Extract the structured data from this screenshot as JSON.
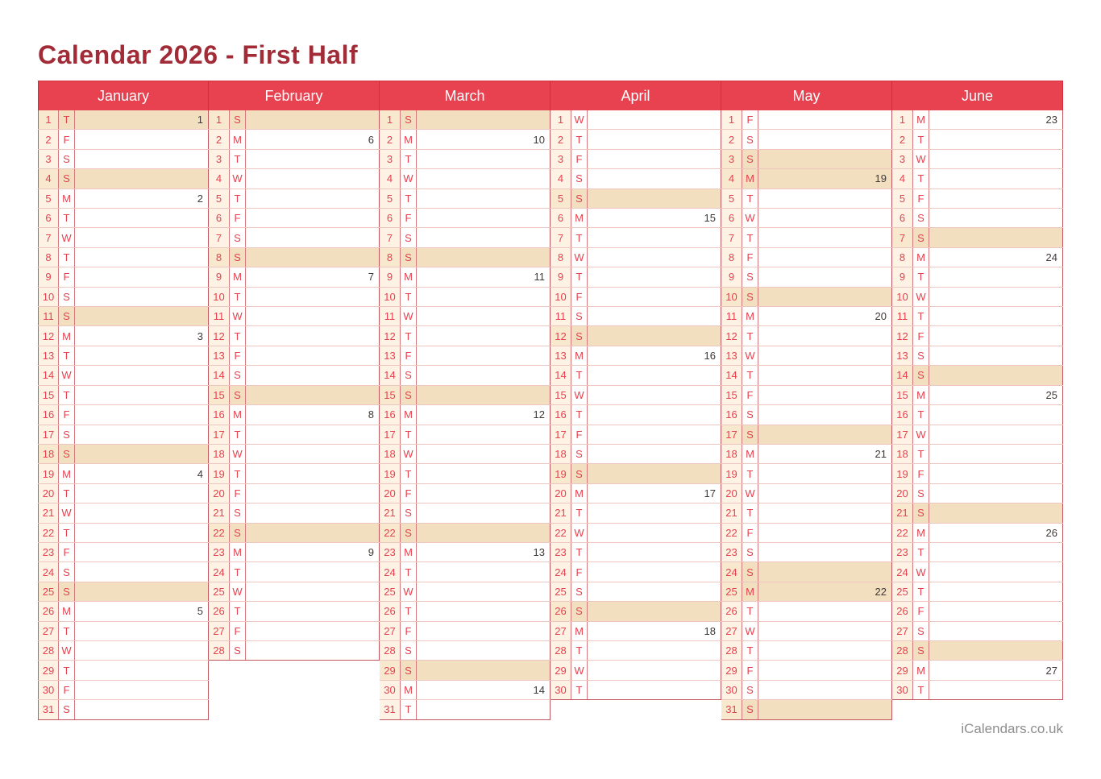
{
  "title": "Calendar 2026 - First Half",
  "footer": "iCalendars.co.uk",
  "colors": {
    "page_bg": "#ffffff",
    "title_text": "#a12b36",
    "header_bg": "#e8414f",
    "header_text": "#ffffff",
    "header_divider": "#d12f3e",
    "day_text": "#e8414f",
    "week_text": "#3f3937",
    "day_cell_bg": "#fdf2e3",
    "day_cell_hl_bg": "#f8e8cd",
    "row_bg": "#ffffff",
    "row_hl_bg": "#f1dfc0",
    "border_strong": "#c2565e",
    "border_mid": "#d4787d",
    "border_light": "#efc5bf",
    "footer_text": "#8e8e8e"
  },
  "calendar": {
    "year": "2026",
    "day_tuple_format": [
      "date",
      "weekday_letter",
      "iso_week_number_or_0",
      "highlighted"
    ],
    "months": [
      {
        "name": "January",
        "days": [
          [
            1,
            "T",
            1,
            true
          ],
          [
            2,
            "F",
            0,
            false
          ],
          [
            3,
            "S",
            0,
            false
          ],
          [
            4,
            "S",
            0,
            true
          ],
          [
            5,
            "M",
            2,
            false
          ],
          [
            6,
            "T",
            0,
            false
          ],
          [
            7,
            "W",
            0,
            false
          ],
          [
            8,
            "T",
            0,
            false
          ],
          [
            9,
            "F",
            0,
            false
          ],
          [
            10,
            "S",
            0,
            false
          ],
          [
            11,
            "S",
            0,
            true
          ],
          [
            12,
            "M",
            3,
            false
          ],
          [
            13,
            "T",
            0,
            false
          ],
          [
            14,
            "W",
            0,
            false
          ],
          [
            15,
            "T",
            0,
            false
          ],
          [
            16,
            "F",
            0,
            false
          ],
          [
            17,
            "S",
            0,
            false
          ],
          [
            18,
            "S",
            0,
            true
          ],
          [
            19,
            "M",
            4,
            false
          ],
          [
            20,
            "T",
            0,
            false
          ],
          [
            21,
            "W",
            0,
            false
          ],
          [
            22,
            "T",
            0,
            false
          ],
          [
            23,
            "F",
            0,
            false
          ],
          [
            24,
            "S",
            0,
            false
          ],
          [
            25,
            "S",
            0,
            true
          ],
          [
            26,
            "M",
            5,
            false
          ],
          [
            27,
            "T",
            0,
            false
          ],
          [
            28,
            "W",
            0,
            false
          ],
          [
            29,
            "T",
            0,
            false
          ],
          [
            30,
            "F",
            0,
            false
          ],
          [
            31,
            "S",
            0,
            false
          ]
        ]
      },
      {
        "name": "February",
        "days": [
          [
            1,
            "S",
            0,
            true
          ],
          [
            2,
            "M",
            6,
            false
          ],
          [
            3,
            "T",
            0,
            false
          ],
          [
            4,
            "W",
            0,
            false
          ],
          [
            5,
            "T",
            0,
            false
          ],
          [
            6,
            "F",
            0,
            false
          ],
          [
            7,
            "S",
            0,
            false
          ],
          [
            8,
            "S",
            0,
            true
          ],
          [
            9,
            "M",
            7,
            false
          ],
          [
            10,
            "T",
            0,
            false
          ],
          [
            11,
            "W",
            0,
            false
          ],
          [
            12,
            "T",
            0,
            false
          ],
          [
            13,
            "F",
            0,
            false
          ],
          [
            14,
            "S",
            0,
            false
          ],
          [
            15,
            "S",
            0,
            true
          ],
          [
            16,
            "M",
            8,
            false
          ],
          [
            17,
            "T",
            0,
            false
          ],
          [
            18,
            "W",
            0,
            false
          ],
          [
            19,
            "T",
            0,
            false
          ],
          [
            20,
            "F",
            0,
            false
          ],
          [
            21,
            "S",
            0,
            false
          ],
          [
            22,
            "S",
            0,
            true
          ],
          [
            23,
            "M",
            9,
            false
          ],
          [
            24,
            "T",
            0,
            false
          ],
          [
            25,
            "W",
            0,
            false
          ],
          [
            26,
            "T",
            0,
            false
          ],
          [
            27,
            "F",
            0,
            false
          ],
          [
            28,
            "S",
            0,
            false
          ]
        ]
      },
      {
        "name": "March",
        "days": [
          [
            1,
            "S",
            0,
            true
          ],
          [
            2,
            "M",
            10,
            false
          ],
          [
            3,
            "T",
            0,
            false
          ],
          [
            4,
            "W",
            0,
            false
          ],
          [
            5,
            "T",
            0,
            false
          ],
          [
            6,
            "F",
            0,
            false
          ],
          [
            7,
            "S",
            0,
            false
          ],
          [
            8,
            "S",
            0,
            true
          ],
          [
            9,
            "M",
            11,
            false
          ],
          [
            10,
            "T",
            0,
            false
          ],
          [
            11,
            "W",
            0,
            false
          ],
          [
            12,
            "T",
            0,
            false
          ],
          [
            13,
            "F",
            0,
            false
          ],
          [
            14,
            "S",
            0,
            false
          ],
          [
            15,
            "S",
            0,
            true
          ],
          [
            16,
            "M",
            12,
            false
          ],
          [
            17,
            "T",
            0,
            false
          ],
          [
            18,
            "W",
            0,
            false
          ],
          [
            19,
            "T",
            0,
            false
          ],
          [
            20,
            "F",
            0,
            false
          ],
          [
            21,
            "S",
            0,
            false
          ],
          [
            22,
            "S",
            0,
            true
          ],
          [
            23,
            "M",
            13,
            false
          ],
          [
            24,
            "T",
            0,
            false
          ],
          [
            25,
            "W",
            0,
            false
          ],
          [
            26,
            "T",
            0,
            false
          ],
          [
            27,
            "F",
            0,
            false
          ],
          [
            28,
            "S",
            0,
            false
          ],
          [
            29,
            "S",
            0,
            true
          ],
          [
            30,
            "M",
            14,
            false
          ],
          [
            31,
            "T",
            0,
            false
          ]
        ]
      },
      {
        "name": "April",
        "days": [
          [
            1,
            "W",
            0,
            false
          ],
          [
            2,
            "T",
            0,
            false
          ],
          [
            3,
            "F",
            0,
            false
          ],
          [
            4,
            "S",
            0,
            false
          ],
          [
            5,
            "S",
            0,
            true
          ],
          [
            6,
            "M",
            15,
            false
          ],
          [
            7,
            "T",
            0,
            false
          ],
          [
            8,
            "W",
            0,
            false
          ],
          [
            9,
            "T",
            0,
            false
          ],
          [
            10,
            "F",
            0,
            false
          ],
          [
            11,
            "S",
            0,
            false
          ],
          [
            12,
            "S",
            0,
            true
          ],
          [
            13,
            "M",
            16,
            false
          ],
          [
            14,
            "T",
            0,
            false
          ],
          [
            15,
            "W",
            0,
            false
          ],
          [
            16,
            "T",
            0,
            false
          ],
          [
            17,
            "F",
            0,
            false
          ],
          [
            18,
            "S",
            0,
            false
          ],
          [
            19,
            "S",
            0,
            true
          ],
          [
            20,
            "M",
            17,
            false
          ],
          [
            21,
            "T",
            0,
            false
          ],
          [
            22,
            "W",
            0,
            false
          ],
          [
            23,
            "T",
            0,
            false
          ],
          [
            24,
            "F",
            0,
            false
          ],
          [
            25,
            "S",
            0,
            false
          ],
          [
            26,
            "S",
            0,
            true
          ],
          [
            27,
            "M",
            18,
            false
          ],
          [
            28,
            "T",
            0,
            false
          ],
          [
            29,
            "W",
            0,
            false
          ],
          [
            30,
            "T",
            0,
            false
          ]
        ]
      },
      {
        "name": "May",
        "days": [
          [
            1,
            "F",
            0,
            false
          ],
          [
            2,
            "S",
            0,
            false
          ],
          [
            3,
            "S",
            0,
            true
          ],
          [
            4,
            "M",
            19,
            true
          ],
          [
            5,
            "T",
            0,
            false
          ],
          [
            6,
            "W",
            0,
            false
          ],
          [
            7,
            "T",
            0,
            false
          ],
          [
            8,
            "F",
            0,
            false
          ],
          [
            9,
            "S",
            0,
            false
          ],
          [
            10,
            "S",
            0,
            true
          ],
          [
            11,
            "M",
            20,
            false
          ],
          [
            12,
            "T",
            0,
            false
          ],
          [
            13,
            "W",
            0,
            false
          ],
          [
            14,
            "T",
            0,
            false
          ],
          [
            15,
            "F",
            0,
            false
          ],
          [
            16,
            "S",
            0,
            false
          ],
          [
            17,
            "S",
            0,
            true
          ],
          [
            18,
            "M",
            21,
            false
          ],
          [
            19,
            "T",
            0,
            false
          ],
          [
            20,
            "W",
            0,
            false
          ],
          [
            21,
            "T",
            0,
            false
          ],
          [
            22,
            "F",
            0,
            false
          ],
          [
            23,
            "S",
            0,
            false
          ],
          [
            24,
            "S",
            0,
            true
          ],
          [
            25,
            "M",
            22,
            true
          ],
          [
            26,
            "T",
            0,
            false
          ],
          [
            27,
            "W",
            0,
            false
          ],
          [
            28,
            "T",
            0,
            false
          ],
          [
            29,
            "F",
            0,
            false
          ],
          [
            30,
            "S",
            0,
            false
          ],
          [
            31,
            "S",
            0,
            true
          ]
        ]
      },
      {
        "name": "June",
        "days": [
          [
            1,
            "M",
            23,
            false
          ],
          [
            2,
            "T",
            0,
            false
          ],
          [
            3,
            "W",
            0,
            false
          ],
          [
            4,
            "T",
            0,
            false
          ],
          [
            5,
            "F",
            0,
            false
          ],
          [
            6,
            "S",
            0,
            false
          ],
          [
            7,
            "S",
            0,
            true
          ],
          [
            8,
            "M",
            24,
            false
          ],
          [
            9,
            "T",
            0,
            false
          ],
          [
            10,
            "W",
            0,
            false
          ],
          [
            11,
            "T",
            0,
            false
          ],
          [
            12,
            "F",
            0,
            false
          ],
          [
            13,
            "S",
            0,
            false
          ],
          [
            14,
            "S",
            0,
            true
          ],
          [
            15,
            "M",
            25,
            false
          ],
          [
            16,
            "T",
            0,
            false
          ],
          [
            17,
            "W",
            0,
            false
          ],
          [
            18,
            "T",
            0,
            false
          ],
          [
            19,
            "F",
            0,
            false
          ],
          [
            20,
            "S",
            0,
            false
          ],
          [
            21,
            "S",
            0,
            true
          ],
          [
            22,
            "M",
            26,
            false
          ],
          [
            23,
            "T",
            0,
            false
          ],
          [
            24,
            "W",
            0,
            false
          ],
          [
            25,
            "T",
            0,
            false
          ],
          [
            26,
            "F",
            0,
            false
          ],
          [
            27,
            "S",
            0,
            false
          ],
          [
            28,
            "S",
            0,
            true
          ],
          [
            29,
            "M",
            27,
            false
          ],
          [
            30,
            "T",
            0,
            false
          ]
        ]
      }
    ]
  }
}
